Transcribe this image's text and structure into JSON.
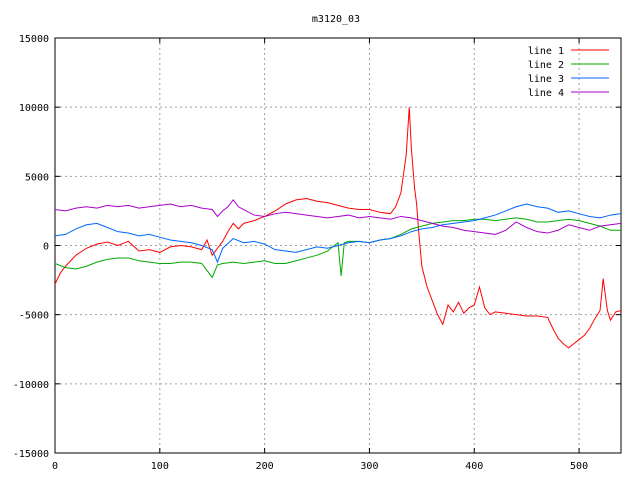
{
  "chart_data": {
    "type": "line",
    "title": "m3120_03",
    "xlabel": "",
    "ylabel": "",
    "xlim": [
      0,
      540
    ],
    "ylim": [
      -15000,
      15000
    ],
    "x_ticks": [
      0,
      100,
      200,
      300,
      400,
      500
    ],
    "y_ticks": [
      -15000,
      -10000,
      -5000,
      0,
      5000,
      10000,
      15000
    ],
    "grid": true,
    "legend_position": "top-right",
    "series": [
      {
        "name": "line 1",
        "color": "#ff0000",
        "points": [
          [
            0,
            -2800
          ],
          [
            5,
            -2000
          ],
          [
            10,
            -1500
          ],
          [
            20,
            -700
          ],
          [
            30,
            -200
          ],
          [
            40,
            100
          ],
          [
            50,
            250
          ],
          [
            60,
            0
          ],
          [
            70,
            300
          ],
          [
            80,
            -400
          ],
          [
            90,
            -300
          ],
          [
            100,
            -500
          ],
          [
            110,
            -100
          ],
          [
            120,
            0
          ],
          [
            130,
            -100
          ],
          [
            140,
            -300
          ],
          [
            145,
            400
          ],
          [
            150,
            -700
          ],
          [
            155,
            -200
          ],
          [
            160,
            300
          ],
          [
            165,
            1000
          ],
          [
            170,
            1600
          ],
          [
            175,
            1200
          ],
          [
            180,
            1600
          ],
          [
            190,
            1800
          ],
          [
            200,
            2100
          ],
          [
            210,
            2500
          ],
          [
            220,
            3000
          ],
          [
            230,
            3300
          ],
          [
            240,
            3400
          ],
          [
            250,
            3200
          ],
          [
            260,
            3100
          ],
          [
            270,
            2900
          ],
          [
            280,
            2700
          ],
          [
            290,
            2600
          ],
          [
            300,
            2600
          ],
          [
            310,
            2400
          ],
          [
            320,
            2300
          ],
          [
            325,
            2800
          ],
          [
            330,
            3800
          ],
          [
            335,
            6500
          ],
          [
            338,
            10000
          ],
          [
            340,
            7000
          ],
          [
            343,
            4200
          ],
          [
            345,
            3000
          ],
          [
            347,
            1000
          ],
          [
            350,
            -1500
          ],
          [
            355,
            -3000
          ],
          [
            360,
            -4000
          ],
          [
            365,
            -5000
          ],
          [
            370,
            -5700
          ],
          [
            375,
            -4300
          ],
          [
            380,
            -4800
          ],
          [
            385,
            -4100
          ],
          [
            390,
            -4900
          ],
          [
            395,
            -4500
          ],
          [
            400,
            -4300
          ],
          [
            405,
            -3000
          ],
          [
            410,
            -4500
          ],
          [
            415,
            -5000
          ],
          [
            420,
            -4800
          ],
          [
            430,
            -4900
          ],
          [
            440,
            -5000
          ],
          [
            450,
            -5100
          ],
          [
            460,
            -5100
          ],
          [
            470,
            -5200
          ],
          [
            475,
            -6000
          ],
          [
            480,
            -6700
          ],
          [
            485,
            -7100
          ],
          [
            490,
            -7400
          ],
          [
            495,
            -7100
          ],
          [
            500,
            -6800
          ],
          [
            505,
            -6500
          ],
          [
            510,
            -6000
          ],
          [
            515,
            -5300
          ],
          [
            520,
            -4700
          ],
          [
            523,
            -2400
          ],
          [
            527,
            -4700
          ],
          [
            530,
            -5400
          ],
          [
            535,
            -4800
          ],
          [
            540,
            -4700
          ]
        ]
      },
      {
        "name": "line 2",
        "color": "#00aa00",
        "points": [
          [
            0,
            -1300
          ],
          [
            10,
            -1600
          ],
          [
            20,
            -1700
          ],
          [
            30,
            -1500
          ],
          [
            40,
            -1200
          ],
          [
            50,
            -1000
          ],
          [
            60,
            -900
          ],
          [
            70,
            -900
          ],
          [
            80,
            -1100
          ],
          [
            90,
            -1200
          ],
          [
            100,
            -1300
          ],
          [
            110,
            -1300
          ],
          [
            120,
            -1200
          ],
          [
            130,
            -1200
          ],
          [
            140,
            -1300
          ],
          [
            145,
            -1800
          ],
          [
            150,
            -2300
          ],
          [
            155,
            -1400
          ],
          [
            160,
            -1300
          ],
          [
            170,
            -1200
          ],
          [
            180,
            -1300
          ],
          [
            190,
            -1200
          ],
          [
            200,
            -1100
          ],
          [
            210,
            -1300
          ],
          [
            220,
            -1300
          ],
          [
            230,
            -1100
          ],
          [
            240,
            -900
          ],
          [
            250,
            -700
          ],
          [
            260,
            -400
          ],
          [
            265,
            -100
          ],
          [
            270,
            200
          ],
          [
            273,
            -2200
          ],
          [
            276,
            200
          ],
          [
            280,
            300
          ],
          [
            290,
            300
          ],
          [
            300,
            200
          ],
          [
            310,
            400
          ],
          [
            320,
            500
          ],
          [
            330,
            800
          ],
          [
            340,
            1200
          ],
          [
            350,
            1400
          ],
          [
            360,
            1600
          ],
          [
            370,
            1700
          ],
          [
            380,
            1800
          ],
          [
            390,
            1800
          ],
          [
            400,
            1900
          ],
          [
            410,
            1900
          ],
          [
            420,
            1800
          ],
          [
            430,
            1900
          ],
          [
            440,
            2000
          ],
          [
            450,
            1900
          ],
          [
            460,
            1700
          ],
          [
            470,
            1700
          ],
          [
            480,
            1800
          ],
          [
            490,
            1900
          ],
          [
            500,
            1800
          ],
          [
            510,
            1600
          ],
          [
            520,
            1400
          ],
          [
            530,
            1100
          ],
          [
            540,
            1100
          ]
        ]
      },
      {
        "name": "line 3",
        "color": "#0066ff",
        "points": [
          [
            0,
            700
          ],
          [
            10,
            800
          ],
          [
            20,
            1200
          ],
          [
            30,
            1500
          ],
          [
            40,
            1600
          ],
          [
            50,
            1300
          ],
          [
            60,
            1000
          ],
          [
            70,
            900
          ],
          [
            80,
            700
          ],
          [
            90,
            800
          ],
          [
            100,
            600
          ],
          [
            110,
            400
          ],
          [
            120,
            300
          ],
          [
            130,
            200
          ],
          [
            140,
            0
          ],
          [
            150,
            -300
          ],
          [
            155,
            -1200
          ],
          [
            160,
            -200
          ],
          [
            170,
            500
          ],
          [
            180,
            200
          ],
          [
            190,
            300
          ],
          [
            200,
            100
          ],
          [
            210,
            -300
          ],
          [
            220,
            -400
          ],
          [
            230,
            -500
          ],
          [
            240,
            -300
          ],
          [
            250,
            -100
          ],
          [
            260,
            -200
          ],
          [
            270,
            0
          ],
          [
            280,
            200
          ],
          [
            290,
            300
          ],
          [
            300,
            200
          ],
          [
            310,
            400
          ],
          [
            320,
            500
          ],
          [
            330,
            700
          ],
          [
            340,
            1000
          ],
          [
            350,
            1200
          ],
          [
            360,
            1300
          ],
          [
            370,
            1500
          ],
          [
            380,
            1600
          ],
          [
            390,
            1700
          ],
          [
            400,
            1800
          ],
          [
            410,
            2000
          ],
          [
            420,
            2200
          ],
          [
            430,
            2500
          ],
          [
            440,
            2800
          ],
          [
            450,
            3000
          ],
          [
            460,
            2800
          ],
          [
            470,
            2700
          ],
          [
            480,
            2400
          ],
          [
            490,
            2500
          ],
          [
            500,
            2300
          ],
          [
            510,
            2100
          ],
          [
            520,
            2000
          ],
          [
            530,
            2200
          ],
          [
            540,
            2300
          ]
        ]
      },
      {
        "name": "line 4",
        "color": "#aa00cc",
        "points": [
          [
            0,
            2600
          ],
          [
            10,
            2500
          ],
          [
            20,
            2700
          ],
          [
            30,
            2800
          ],
          [
            40,
            2700
          ],
          [
            50,
            2900
          ],
          [
            60,
            2800
          ],
          [
            70,
            2900
          ],
          [
            80,
            2700
          ],
          [
            90,
            2800
          ],
          [
            100,
            2900
          ],
          [
            110,
            3000
          ],
          [
            120,
            2800
          ],
          [
            130,
            2900
          ],
          [
            140,
            2700
          ],
          [
            150,
            2600
          ],
          [
            155,
            2100
          ],
          [
            160,
            2500
          ],
          [
            165,
            2800
          ],
          [
            170,
            3300
          ],
          [
            175,
            2800
          ],
          [
            180,
            2600
          ],
          [
            190,
            2200
          ],
          [
            200,
            2100
          ],
          [
            210,
            2300
          ],
          [
            220,
            2400
          ],
          [
            230,
            2300
          ],
          [
            240,
            2200
          ],
          [
            250,
            2100
          ],
          [
            260,
            2000
          ],
          [
            270,
            2100
          ],
          [
            280,
            2200
          ],
          [
            290,
            2000
          ],
          [
            300,
            2100
          ],
          [
            310,
            2000
          ],
          [
            320,
            1900
          ],
          [
            330,
            2100
          ],
          [
            340,
            2000
          ],
          [
            350,
            1800
          ],
          [
            360,
            1600
          ],
          [
            370,
            1400
          ],
          [
            380,
            1300
          ],
          [
            390,
            1100
          ],
          [
            400,
            1000
          ],
          [
            410,
            900
          ],
          [
            420,
            800
          ],
          [
            430,
            1100
          ],
          [
            440,
            1700
          ],
          [
            450,
            1300
          ],
          [
            460,
            1000
          ],
          [
            470,
            900
          ],
          [
            480,
            1100
          ],
          [
            490,
            1500
          ],
          [
            500,
            1300
          ],
          [
            510,
            1100
          ],
          [
            520,
            1400
          ],
          [
            530,
            1500
          ],
          [
            540,
            1600
          ]
        ]
      }
    ]
  }
}
